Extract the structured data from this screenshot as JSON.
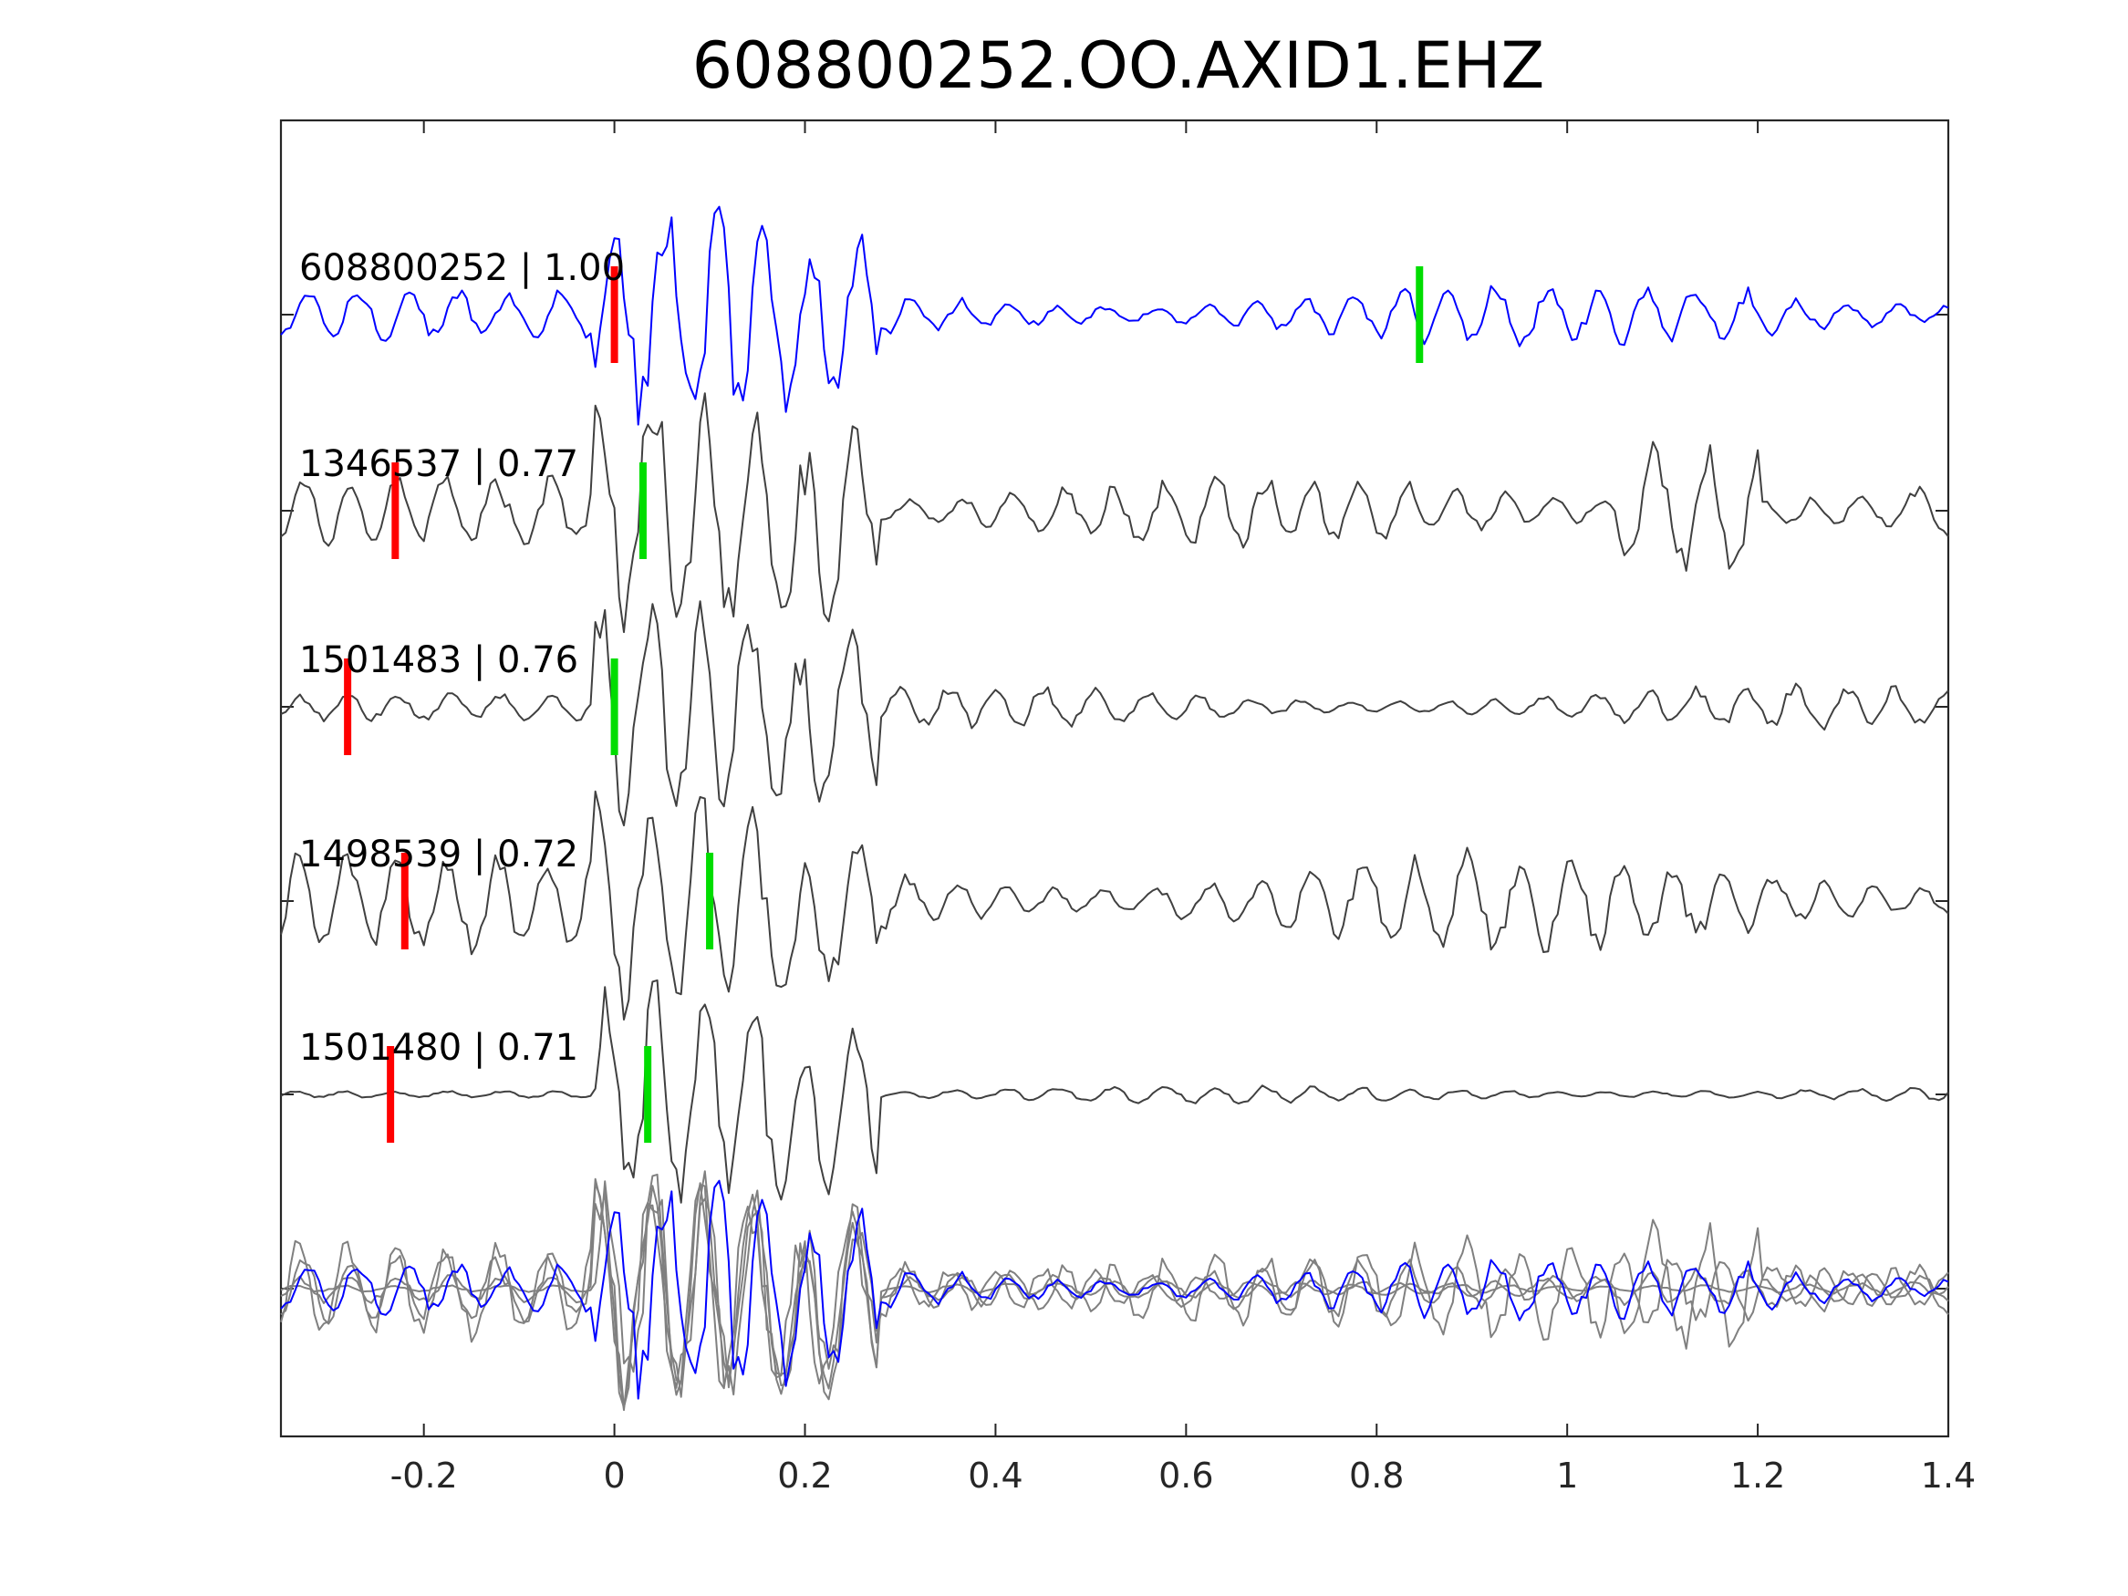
{
  "chart_data": {
    "type": "line",
    "title": "608800252.OO.AXID1.EHZ",
    "xlabel": "",
    "ylabel": "",
    "xlim": [
      -0.35,
      1.4
    ],
    "xticks": [
      -0.2,
      0,
      0.2,
      0.4,
      0.6,
      0.8,
      1,
      1.2,
      1.4
    ],
    "xtick_labels": [
      "-0.2",
      "0",
      "0.2",
      "0.4",
      "0.6",
      "0.8",
      "1",
      "1.2",
      "1.4"
    ],
    "grid": false,
    "colors": {
      "template": "#0000ff",
      "neighbor": "#404040",
      "overlay": "#808080",
      "p_pick": "#ff0000",
      "s_pick": "#00dd00"
    },
    "series": [
      {
        "label": "608800252 | 1.00",
        "id": "608800252",
        "cc": 1.0,
        "p_pick": 0.0,
        "s_pick": 0.845,
        "color": "template"
      },
      {
        "label": "1346537 | 0.77",
        "id": "1346537",
        "cc": 0.77,
        "p_pick": -0.23,
        "s_pick": 0.03,
        "color": "neighbor"
      },
      {
        "label": "1501483 | 0.76",
        "id": "1501483",
        "cc": 0.76,
        "p_pick": -0.28,
        "s_pick": 0.0,
        "color": "neighbor"
      },
      {
        "label": "1498539 | 0.72",
        "id": "1498539",
        "cc": 0.72,
        "p_pick": -0.22,
        "s_pick": 0.1,
        "color": "neighbor"
      },
      {
        "label": "1501480 | 0.71",
        "id": "1501480",
        "cc": 0.71,
        "p_pick": -0.235,
        "s_pick": 0.035,
        "color": "neighbor"
      }
    ]
  }
}
